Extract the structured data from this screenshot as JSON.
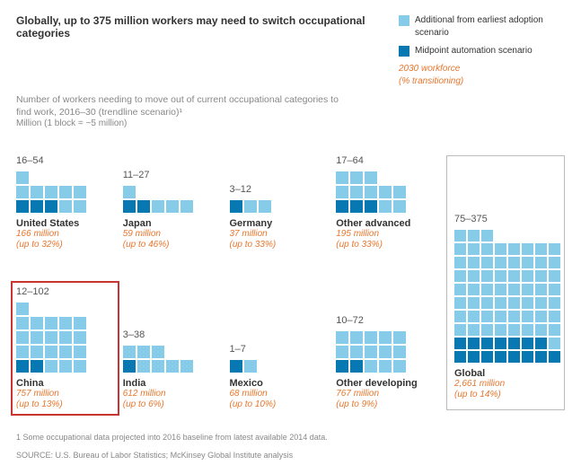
{
  "title": "Globally, up to 375 million workers may need to switch occupational categories",
  "subtitle": "Number of workers needing to move out of current occupational categories to find work, 2016–30 (trendline scenario)¹",
  "unit": "Million (1 block = ~5 million)",
  "legend": {
    "light": {
      "label": "Additional from earliest adoption scenario",
      "color": "#86cbe8"
    },
    "dark": {
      "label": "Midpoint automation scenario",
      "color": "#0878b2"
    },
    "orange": {
      "label_line1": "2030 workforce",
      "label_line2": "(% transitioning)",
      "color": "#e8762d"
    }
  },
  "style": {
    "block_light": "#86cbe8",
    "block_dark": "#0878b2",
    "block_size": 14,
    "block_gap": 2,
    "cols_per_row": 5,
    "global_cols_per_row": 8,
    "highlight_border": "#cc3333",
    "global_border": "#bbbbbb",
    "background": "#ffffff"
  },
  "countries": [
    {
      "name": "United States",
      "range": "16–54",
      "dark": 3,
      "light": 8,
      "workforce": "166 million",
      "pct": "(up to 32%)",
      "highlight": false
    },
    {
      "name": "Japan",
      "range": "11–27",
      "dark": 2,
      "light": 4,
      "workforce": "59 million",
      "pct": "(up to 46%)",
      "highlight": false
    },
    {
      "name": "Germany",
      "range": "3–12",
      "dark": 1,
      "light": 2,
      "workforce": "37 million",
      "pct": "(up to 33%)",
      "highlight": false
    },
    {
      "name": "Other advanced",
      "range": "17–64",
      "dark": 3,
      "light": 10,
      "workforce": "195 million",
      "pct": "(up to 33%)",
      "highlight": false
    },
    {
      "name": "China",
      "range": "12–102",
      "dark": 2,
      "light": 19,
      "workforce": "757 million",
      "pct": "(up to 13%)",
      "highlight": true
    },
    {
      "name": "India",
      "range": "3–38",
      "dark": 1,
      "light": 7,
      "workforce": "612 million",
      "pct": "(up to 6%)",
      "highlight": false
    },
    {
      "name": "Mexico",
      "range": "1–7",
      "dark": 1,
      "light": 1,
      "workforce": "68 million",
      "pct": "(up to 10%)",
      "highlight": false
    },
    {
      "name": "Other developing",
      "range": "10–72",
      "dark": 2,
      "light": 13,
      "workforce": "767 million",
      "pct": "(up to 9%)",
      "highlight": false
    }
  ],
  "global": {
    "name": "Global",
    "range": "75–375",
    "dark": 15,
    "light": 60,
    "workforce": "2,661 million",
    "pct": "(up to 14%)"
  },
  "footnote": "1  Some occupational data projected into 2016 baseline from latest available 2014 data.",
  "source": "SOURCE:  U.S. Bureau of Labor Statistics; McKinsey Global Institute analysis"
}
